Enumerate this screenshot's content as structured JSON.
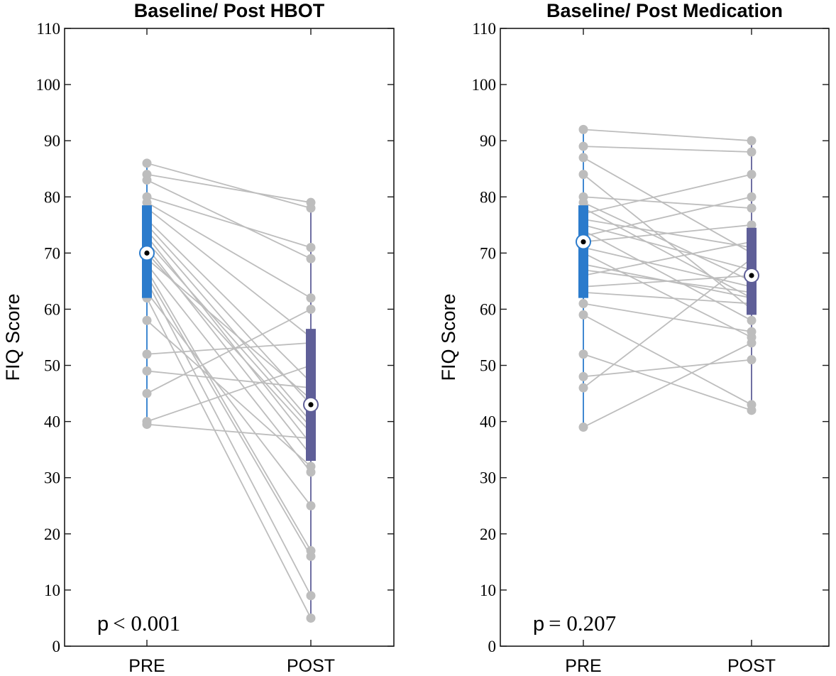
{
  "chart_data": [
    {
      "type": "box",
      "title": "Baseline/ Post HBOT",
      "ylabel": "FIQ Score",
      "xlabel": "",
      "categories": [
        "PRE",
        "POST"
      ],
      "ylim": [
        0,
        110
      ],
      "yticks": [
        0,
        10,
        20,
        30,
        40,
        50,
        60,
        70,
        80,
        90,
        100,
        110
      ],
      "annotation": {
        "p_label": "p",
        "p_value": "< 0.001"
      },
      "colors": {
        "pre": "#2b7bcc",
        "post": "#5f5f98",
        "points": "#bdbdbd",
        "lines": "#bdbdbd"
      },
      "boxes": [
        {
          "category": "PRE",
          "whisker_low": 40,
          "q1": 62,
          "median": 70,
          "q3": 78.5,
          "whisker_high": 86
        },
        {
          "category": "POST",
          "whisker_low": 5,
          "q1": 33,
          "median": 43,
          "q3": 56.5,
          "whisker_high": 79
        }
      ],
      "pairs": [
        [
          86,
          78
        ],
        [
          84,
          79
        ],
        [
          83,
          69
        ],
        [
          80,
          71
        ],
        [
          79,
          62
        ],
        [
          78,
          55
        ],
        [
          76,
          47
        ],
        [
          75,
          43
        ],
        [
          74,
          40
        ],
        [
          73,
          36
        ],
        [
          72,
          39
        ],
        [
          71,
          34
        ],
        [
          70,
          38
        ],
        [
          69,
          44
        ],
        [
          68,
          31
        ],
        [
          67,
          17
        ],
        [
          66,
          16
        ],
        [
          65,
          9
        ],
        [
          63,
          25
        ],
        [
          62,
          5
        ],
        [
          58,
          32
        ],
        [
          52,
          54
        ],
        [
          49,
          46
        ],
        [
          45,
          60
        ],
        [
          40,
          50
        ],
        [
          39.5,
          37
        ]
      ]
    },
    {
      "type": "box",
      "title": "Baseline/ Post Medication",
      "ylabel": "FIQ Score",
      "xlabel": "",
      "categories": [
        "PRE",
        "POST"
      ],
      "ylim": [
        0,
        110
      ],
      "yticks": [
        0,
        10,
        20,
        30,
        40,
        50,
        60,
        70,
        80,
        90,
        100,
        110
      ],
      "annotation": {
        "p_label": "p",
        "p_value": "= 0.207"
      },
      "colors": {
        "pre": "#2b7bcc",
        "post": "#5f5f98",
        "points": "#bdbdbd",
        "lines": "#bdbdbd"
      },
      "boxes": [
        {
          "category": "PRE",
          "whisker_low": 39,
          "q1": 62,
          "median": 72,
          "q3": 78.5,
          "whisker_high": 92
        },
        {
          "category": "POST",
          "whisker_low": 42,
          "q1": 59,
          "median": 66,
          "q3": 74.5,
          "whisker_high": 90
        }
      ],
      "pairs": [
        [
          92,
          90
        ],
        [
          89,
          88
        ],
        [
          87,
          70
        ],
        [
          84,
          60
        ],
        [
          80,
          78
        ],
        [
          79,
          65
        ],
        [
          78,
          62
        ],
        [
          77,
          84
        ],
        [
          76,
          71
        ],
        [
          75,
          67
        ],
        [
          74,
          58
        ],
        [
          73,
          80
        ],
        [
          72,
          75
        ],
        [
          71,
          64
        ],
        [
          70,
          55
        ],
        [
          68,
          62
        ],
        [
          67,
          63
        ],
        [
          66,
          72
        ],
        [
          64,
          66
        ],
        [
          63,
          61
        ],
        [
          61,
          56
        ],
        [
          59,
          43
        ],
        [
          52,
          42
        ],
        [
          48,
          51
        ],
        [
          46,
          69
        ],
        [
          39,
          54
        ]
      ]
    }
  ]
}
